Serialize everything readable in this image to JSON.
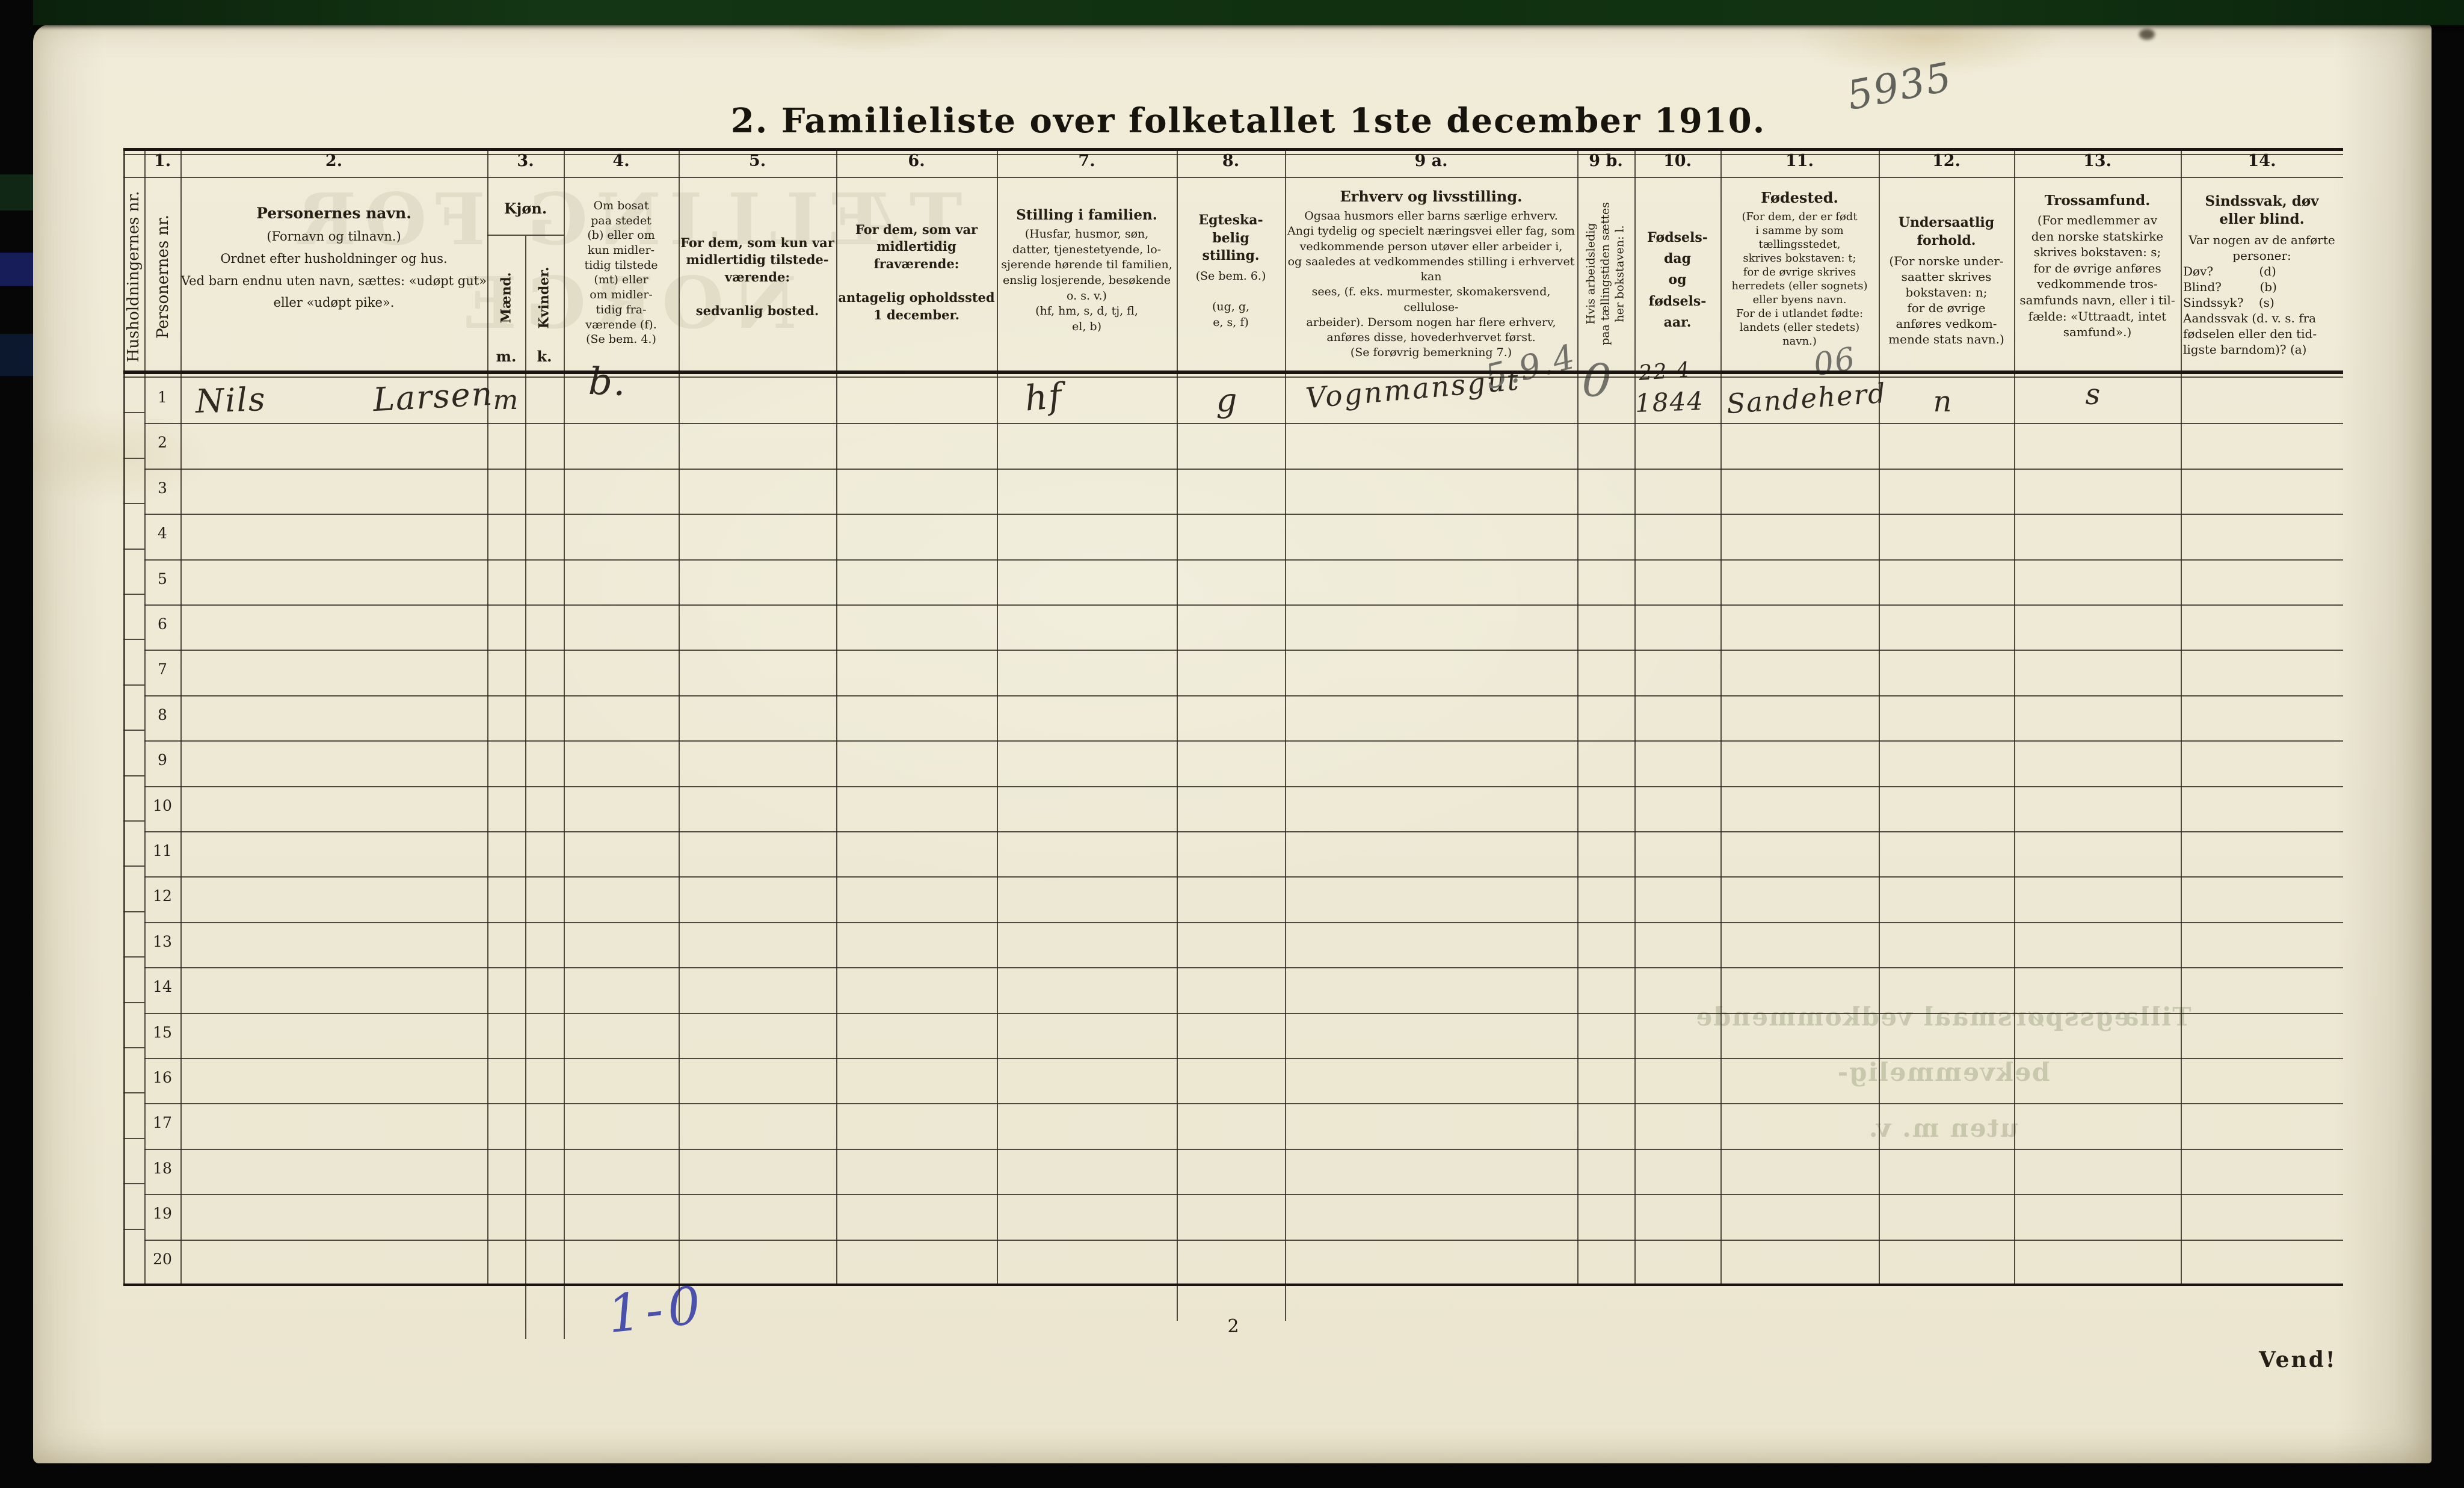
{
  "page": {
    "title": "2. Familieliste over folketallet 1ste december 1910.",
    "doc_number": "5935",
    "page_number": "2",
    "turn_label": "Vend!",
    "tally_annotation": "1-0"
  },
  "ghosts": {
    "stamp": "TÆLLING FOR NORGE",
    "note": "Tillægsspørsmaal vedkommende bekvemmelig-\nuten m. v."
  },
  "table": {
    "col_h": {
      "label": "Husholdningernes nr."
    },
    "col_1": {
      "num": "1.",
      "label": "Personernes nr."
    },
    "col_2": {
      "num": "2.",
      "title": "Personernes navn.",
      "body": "(Fornavn og tilnavn.)\nOrdnet efter husholdninger og hus.\nVed barn endnu uten navn, sættes: «udøpt gut»\neller «udøpt pike»."
    },
    "col_3": {
      "num": "3.",
      "title": "Kjøn.",
      "male": "Mænd.",
      "male_abbr": "m.",
      "female": "Kvinder.",
      "female_abbr": "k."
    },
    "col_4": {
      "num": "4.",
      "body": "Om bosat\npaa stedet\n(b) eller om\nkun midler-\ntidig tilstede\n(mt) eller\nom midler-\ntidig fra-\nværende (f).\n(Se bem. 4.)"
    },
    "col_5": {
      "num": "5.",
      "body": "For dem, som kun var\nmidlertidig tilstede-\nværende:\n\nsedvanlig bosted."
    },
    "col_6": {
      "num": "6.",
      "body": "For dem, som var\nmidlertidig\nfraværende:\n\nantagelig opholdssted\n1 december."
    },
    "col_7": {
      "num": "7.",
      "title": "Stilling i familien.",
      "body": "(Husfar, husmor, søn,\ndatter, tjenestetyende, lo-\nsjerende hørende til familien,\nenslig losjerende, besøkende\no. s. v.)\n(hf, hm, s, d, tj, fl,\nel, b)"
    },
    "col_8": {
      "num": "8.",
      "title": "Egteska-\nbelig\nstilling.",
      "body": "(Se bem. 6.)\n\n(ug, g,\ne, s, f)"
    },
    "col_9a": {
      "num": "9 a.",
      "title": "Erhverv og livsstilling.",
      "body": "Ogsaa husmors eller barns særlige erhverv.\nAngi tydelig og specielt næringsvei eller fag, som\nvedkommende person utøver eller arbeider i,\nog saaledes at vedkommendes stilling i erhvervet kan\nsees, (f. eks. murmester, skomakersvend, cellulose-\narbeider).  Dersom nogen har flere erhverv,\nanføres disse, hovederhvervet først.\n(Se forøvrig bemerkning 7.)"
    },
    "col_9b": {
      "num": "9 b.",
      "label": "Hvis arbeidsledig\npaa tællingstiden sættes\nher bokstaven: l."
    },
    "col_10": {
      "num": "10.",
      "body": "Fødsels-\ndag\nog\nfødsels-\naar."
    },
    "col_11": {
      "num": "11.",
      "title": "Fødested.",
      "body": "(For dem, der er født\ni samme by som\ntællingsstedet,\nskrives bokstaven: t;\nfor de øvrige skrives\nherredets (eller sognets)\neller byens navn.\nFor de i utlandet fødte:\nlandets (eller stedets)\nnavn.)"
    },
    "col_12": {
      "num": "12.",
      "title": "Undersaatlig\nforhold.",
      "body": "(For norske under-\nsaatter skrives\nbokstaven: n;\nfor de øvrige\nanføres vedkom-\nmende stats navn.)"
    },
    "col_13": {
      "num": "13.",
      "title": "Trossamfund.",
      "body": "(For medlemmer av\nden norske statskirke\nskrives bokstaven: s;\nfor de øvrige anføres\nvedkommende tros-\nsamfunds navn, eller i til-\nfælde: «Uttraadt, intet\nsamfund».)"
    },
    "col_14": {
      "num": "14.",
      "title": "Sindssvak, døv\neller blind.",
      "intro": "Var nogen av de anførte\npersoner:",
      "list": "Døv?            (d)\nBlind?          (b)\nSindssyk?    (s)\nAandssvak (d. v. s. fra\nfødselen eller den tid-\nligste barndom)? (a)"
    },
    "row_numbers": [
      "1",
      "2",
      "3",
      "4",
      "5",
      "6",
      "7",
      "8",
      "9",
      "10",
      "11",
      "12",
      "13",
      "14",
      "15",
      "16",
      "17",
      "18",
      "19",
      "20"
    ]
  },
  "entry": {
    "name_first": "Nils",
    "name_last": "Larsen",
    "sex": "m",
    "resident": "b.",
    "family_position": "hf",
    "marital_status": "g",
    "occupation": "Vognmansgut",
    "occupation_code": "5.9.4",
    "unemployed_mark": "0",
    "birth_day": "22-4",
    "birth_year": "1844",
    "birthplace": "Sandeherd",
    "birthplace_code": "06",
    "citizenship": "n",
    "religion": "s"
  }
}
